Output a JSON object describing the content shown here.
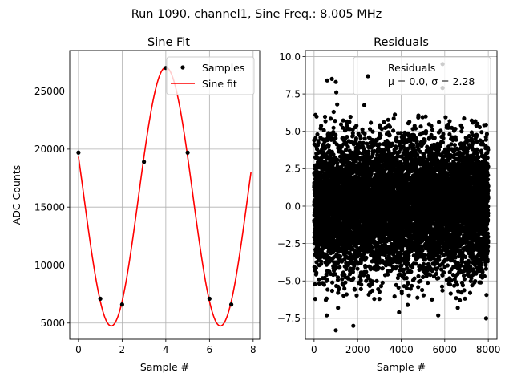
{
  "figure": {
    "suptitle": "Run 1090, channel1, Sine Freq.: 8.005 MHz"
  },
  "colors": {
    "fit": "#ff0000",
    "points": "#000000",
    "grid": "#b0b0b0"
  },
  "chart_data": [
    {
      "type": "line",
      "title": "Sine Fit",
      "xlabel": "Sample #",
      "ylabel": "ADC Counts",
      "xlim": [
        -0.4,
        8.3
      ],
      "ylim": [
        3600,
        28500
      ],
      "xticks": [
        0,
        2,
        4,
        6,
        8
      ],
      "yticks": [
        5000,
        10000,
        15000,
        20000,
        25000
      ],
      "xtick_labels": [
        "0",
        "2",
        "4",
        "6",
        "8"
      ],
      "ytick_labels": [
        "5000",
        "10000",
        "15000",
        "20000",
        "25000"
      ],
      "grid": true,
      "legend": {
        "placement": "top-right",
        "entries": [
          "Samples",
          "Sine fit"
        ]
      },
      "series": [
        {
          "name": "Samples",
          "kind": "scatter",
          "x": [
            0,
            1,
            2,
            3,
            4,
            5,
            6,
            7
          ],
          "y": [
            19700,
            7100,
            6600,
            18900,
            27000,
            19700,
            7100,
            6600
          ]
        },
        {
          "name": "Sine fit",
          "kind": "line",
          "model": {
            "offset": 15900,
            "amplitude": 11150,
            "period": 5.0,
            "phase_x": 4.0
          },
          "x_range": [
            0,
            7.9
          ]
        }
      ]
    },
    {
      "type": "scatter",
      "title": "Residuals",
      "xlabel": "Sample #",
      "ylabel": "",
      "xlim": [
        -400,
        8400
      ],
      "ylim": [
        -8.9,
        10.4
      ],
      "xticks": [
        0,
        2000,
        4000,
        6000,
        8000
      ],
      "yticks": [
        -7.5,
        -5.0,
        -2.5,
        0.0,
        2.5,
        5.0,
        7.5,
        10.0
      ],
      "xtick_labels": [
        "0",
        "2000",
        "4000",
        "6000",
        "8000"
      ],
      "ytick_labels": [
        "−7.5",
        "−5.0",
        "−2.5",
        "0.0",
        "2.5",
        "5.0",
        "7.5",
        "10.0"
      ],
      "grid": true,
      "legend": {
        "placement": "top-right",
        "entries": [
          "Residuals",
          "μ = 0.0, σ = 2.28"
        ]
      },
      "series": [
        {
          "name": "Residuals",
          "kind": "scatter",
          "n_points": 8000,
          "mean": 0.0,
          "sigma": 2.28,
          "outliers": {
            "x": [
              600,
              820,
              1000,
              1060,
              900,
              1020,
              5900,
              5900,
              580,
              1000,
              1800,
              3900,
              5700,
              6600,
              7900,
              1100,
              3000,
              4300
            ],
            "y": [
              8.4,
              8.5,
              8.3,
              6.8,
              6.3,
              7.6,
              9.5,
              7.9,
              -7.3,
              -8.3,
              -8.0,
              -7.1,
              -7.3,
              -6.8,
              -7.5,
              -6.8,
              -6.2,
              -6.6
            ]
          }
        }
      ]
    }
  ]
}
